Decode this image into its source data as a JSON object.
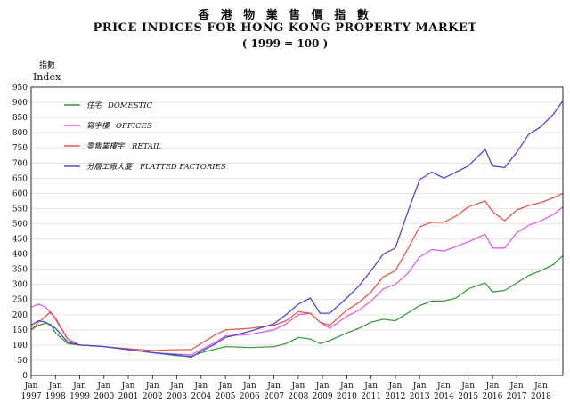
{
  "chart_data": {
    "type": "line",
    "title_zh": "香 港 物 業 售 價 指 數",
    "title": "PRICE INDICES FOR HONG KONG PROPERTY MARKET",
    "subtitle": "( 1999 = 100 )",
    "ylabel_zh": "指數",
    "ylabel": "Index",
    "ylim": [
      0,
      950
    ],
    "yticks": [
      0,
      50,
      100,
      150,
      200,
      250,
      300,
      350,
      400,
      450,
      500,
      550,
      600,
      650,
      700,
      750,
      800,
      850,
      900,
      950
    ],
    "xlim": [
      1997.0,
      2018.9
    ],
    "xticks": [
      {
        "top": "Jan",
        "bottom": "1997",
        "x": 1997
      },
      {
        "top": "Jan",
        "bottom": "1998",
        "x": 1998
      },
      {
        "top": "Jan",
        "bottom": "1999",
        "x": 1999
      },
      {
        "top": "Jan",
        "bottom": "2000",
        "x": 2000
      },
      {
        "top": "Jan",
        "bottom": "2001",
        "x": 2001
      },
      {
        "top": "Jan",
        "bottom": "2002",
        "x": 2002
      },
      {
        "top": "Jan",
        "bottom": "2003",
        "x": 2003
      },
      {
        "top": "Jan",
        "bottom": "2004",
        "x": 2004
      },
      {
        "top": "Jan",
        "bottom": "2005",
        "x": 2005
      },
      {
        "top": "Jan",
        "bottom": "2006",
        "x": 2006
      },
      {
        "top": "Jan",
        "bottom": "2007",
        "x": 2007
      },
      {
        "top": "Jan",
        "bottom": "2008",
        "x": 2008
      },
      {
        "top": "Jan",
        "bottom": "2009",
        "x": 2009
      },
      {
        "top": "Jan",
        "bottom": "2010",
        "x": 2010
      },
      {
        "top": "Jan",
        "bottom": "2011",
        "x": 2011
      },
      {
        "top": "Jan",
        "bottom": "2012",
        "x": 2012
      },
      {
        "top": "Jan",
        "bottom": "2013",
        "x": 2013
      },
      {
        "top": "Jan",
        "bottom": "2014",
        "x": 2014
      },
      {
        "top": "Jan",
        "bottom": "2015",
        "x": 2015
      },
      {
        "top": "Jan",
        "bottom": "2016",
        "x": 2016
      },
      {
        "top": "Jan",
        "bottom": "2017",
        "x": 2017
      },
      {
        "top": "Jan",
        "bottom": "2018",
        "x": 2018
      }
    ],
    "grid": "horizontal",
    "legend_position": "top-left",
    "series": [
      {
        "name_zh": "住宅",
        "name": "DOMESTIC",
        "color": "#3f9a3f",
        "x": [
          1997.0,
          1997.3,
          1997.6,
          1997.8,
          1998.0,
          1998.5,
          1999.0,
          1999.5,
          2000.0,
          2001.0,
          2002.0,
          2003.0,
          2003.6,
          2004.0,
          2004.5,
          2005.0,
          2006.0,
          2007.0,
          2007.5,
          2008.0,
          2008.5,
          2008.9,
          2009.3,
          2010.0,
          2010.5,
          2011.0,
          2011.5,
          2012.0,
          2012.5,
          2013.0,
          2013.5,
          2014.0,
          2014.5,
          2015.0,
          2015.7,
          2016.0,
          2016.5,
          2017.0,
          2017.5,
          2018.0,
          2018.5,
          2018.9
        ],
        "values": [
          150,
          165,
          172,
          168,
          140,
          105,
          100,
          98,
          95,
          85,
          75,
          65,
          63,
          75,
          85,
          95,
          92,
          95,
          105,
          125,
          120,
          105,
          115,
          140,
          155,
          175,
          185,
          180,
          205,
          230,
          245,
          245,
          255,
          285,
          305,
          275,
          280,
          305,
          330,
          345,
          365,
          395
        ]
      },
      {
        "name_zh": "寫字樓",
        "name": "OFFICES",
        "color": "#e060e0",
        "x": [
          1997.0,
          1997.3,
          1997.6,
          1997.8,
          1998.0,
          1998.5,
          1999.0,
          1999.5,
          2000.0,
          2001.0,
          2002.0,
          2003.0,
          2003.6,
          2004.0,
          2004.5,
          2005.0,
          2006.0,
          2007.0,
          2007.5,
          2008.0,
          2008.5,
          2008.9,
          2009.3,
          2010.0,
          2010.5,
          2011.0,
          2011.5,
          2012.0,
          2012.5,
          2013.0,
          2013.5,
          2014.0,
          2014.5,
          2015.0,
          2015.7,
          2016.0,
          2016.5,
          2017.0,
          2017.5,
          2018.0,
          2018.5,
          2018.9
        ],
        "values": [
          225,
          235,
          225,
          205,
          190,
          120,
          100,
          98,
          95,
          85,
          75,
          70,
          68,
          85,
          105,
          130,
          135,
          150,
          170,
          200,
          205,
          175,
          155,
          195,
          215,
          245,
          285,
          300,
          335,
          390,
          415,
          410,
          425,
          440,
          465,
          420,
          420,
          470,
          495,
          510,
          530,
          555
        ]
      },
      {
        "name_zh": "零售業樓宇",
        "name": "RETAIL",
        "color": "#e05a4a",
        "x": [
          1997.0,
          1997.3,
          1997.6,
          1997.8,
          1998.0,
          1998.5,
          1999.0,
          1999.5,
          2000.0,
          2001.0,
          2002.0,
          2003.0,
          2003.6,
          2004.0,
          2004.5,
          2005.0,
          2006.0,
          2007.0,
          2007.5,
          2008.0,
          2008.5,
          2008.9,
          2009.3,
          2010.0,
          2010.5,
          2011.0,
          2011.5,
          2012.0,
          2012.5,
          2013.0,
          2013.5,
          2014.0,
          2014.5,
          2015.0,
          2015.7,
          2016.0,
          2016.5,
          2017.0,
          2017.5,
          2018.0,
          2018.5,
          2018.9
        ],
        "values": [
          150,
          175,
          195,
          210,
          185,
          120,
          100,
          98,
          95,
          88,
          82,
          85,
          85,
          105,
          130,
          150,
          155,
          165,
          180,
          210,
          205,
          175,
          165,
          215,
          240,
          275,
          325,
          345,
          415,
          490,
          505,
          505,
          525,
          555,
          575,
          540,
          510,
          545,
          560,
          570,
          585,
          600
        ]
      },
      {
        "name_zh": "分層工廠大廈",
        "name": "FLATTED FACTORIES",
        "color": "#4a4ad0",
        "x": [
          1997.0,
          1997.3,
          1997.6,
          1997.8,
          1998.0,
          1998.5,
          1999.0,
          1999.5,
          2000.0,
          2001.0,
          2002.0,
          2003.0,
          2003.6,
          2004.0,
          2004.5,
          2005.0,
          2006.0,
          2007.0,
          2007.5,
          2008.0,
          2008.5,
          2008.9,
          2009.3,
          2010.0,
          2010.5,
          2011.0,
          2011.5,
          2012.0,
          2012.5,
          2013.0,
          2013.5,
          2014.0,
          2014.5,
          2015.0,
          2015.7,
          2016.0,
          2016.5,
          2017.0,
          2017.5,
          2018.0,
          2018.5,
          2018.9
        ],
        "values": [
          165,
          180,
          175,
          165,
          155,
          110,
          100,
          98,
          95,
          85,
          75,
          68,
          60,
          80,
          100,
          125,
          145,
          170,
          200,
          235,
          255,
          205,
          205,
          255,
          295,
          345,
          400,
          420,
          535,
          645,
          670,
          650,
          670,
          690,
          745,
          690,
          685,
          735,
          795,
          820,
          860,
          905
        ]
      }
    ]
  }
}
